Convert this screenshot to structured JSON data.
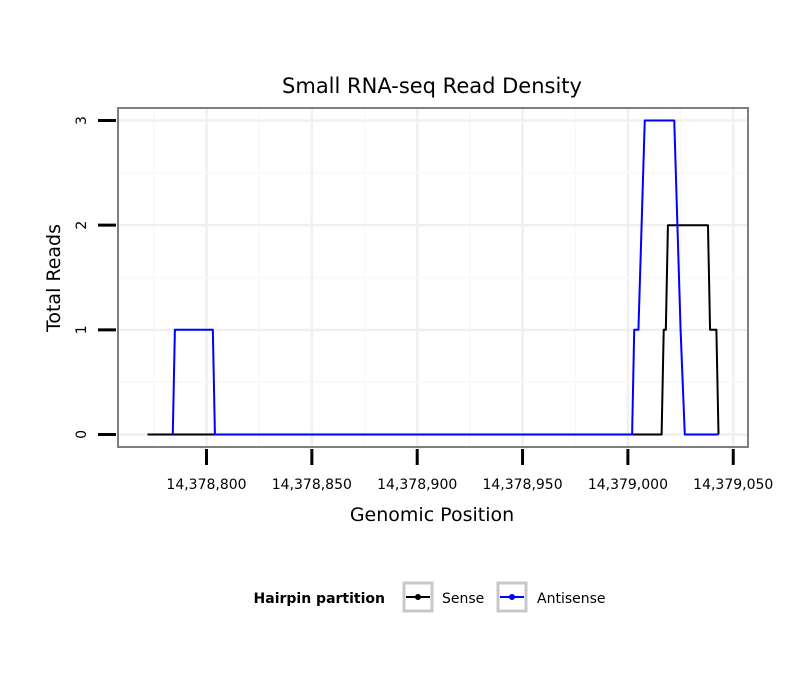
{
  "chart_data": {
    "type": "line",
    "step": true,
    "title": "Small RNA-seq Read Density",
    "xlabel": "Genomic Position",
    "ylabel": "Total Reads",
    "xlim": [
      14378758,
      14379057
    ],
    "ylim": [
      -0.12,
      3.12
    ],
    "x_ticks": [
      14378800,
      14378850,
      14378900,
      14378950,
      14379000,
      14379050
    ],
    "x_tick_labels": [
      "14,378,800",
      "14,378,850",
      "14,378,900",
      "14,378,950",
      "14,379,000",
      "14,379,050"
    ],
    "y_ticks": [
      0,
      1,
      2,
      3
    ],
    "y_tick_labels": [
      "0",
      "1",
      "2",
      "3"
    ],
    "grid": true,
    "legend": {
      "title": "Hairpin partition",
      "position": "bottom",
      "entries": [
        "Sense",
        "Antisense"
      ]
    },
    "series": [
      {
        "name": "Sense",
        "color": "#000000",
        "points": [
          [
            14378772,
            0
          ],
          [
            14379016,
            0
          ],
          [
            14379017,
            1
          ],
          [
            14379018,
            1
          ],
          [
            14379019,
            2
          ],
          [
            14379038,
            2
          ],
          [
            14379039,
            1
          ],
          [
            14379042,
            1
          ],
          [
            14379043,
            0
          ]
        ]
      },
      {
        "name": "Antisense",
        "color": "#0000ff",
        "points": [
          [
            14378784,
            0
          ],
          [
            14378785,
            1
          ],
          [
            14378803,
            1
          ],
          [
            14378804,
            0
          ],
          [
            14379002,
            0
          ],
          [
            14379003,
            1
          ],
          [
            14379005,
            1
          ],
          [
            14379008,
            3
          ],
          [
            14379022,
            3
          ],
          [
            14379025,
            1
          ],
          [
            14379027,
            0
          ],
          [
            14379043,
            0
          ]
        ]
      }
    ]
  }
}
